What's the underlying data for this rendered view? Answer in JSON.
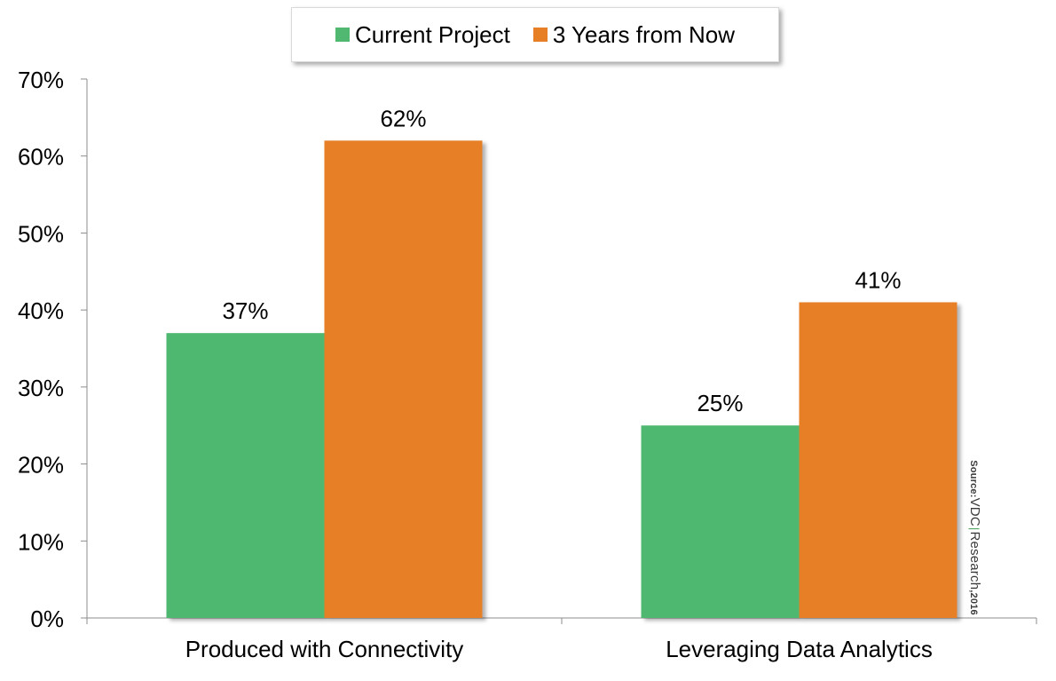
{
  "chart_data": {
    "type": "bar",
    "categories": [
      "Produced with Connectivity",
      "Leveraging Data Analytics"
    ],
    "series": [
      {
        "name": "Current Project",
        "values": [
          37,
          25
        ],
        "labels": [
          "37%",
          "25%"
        ],
        "color": "#50b870"
      },
      {
        "name": "3 Years from Now",
        "values": [
          62,
          41
        ],
        "labels": [
          "62%",
          "41%"
        ],
        "color": "#e67f26"
      }
    ],
    "ylim": [
      0,
      70
    ],
    "yticks": [
      0,
      10,
      20,
      30,
      40,
      50,
      60,
      70
    ],
    "ytick_labels": [
      "0%",
      "10%",
      "20%",
      "30%",
      "40%",
      "50%",
      "60%",
      "70%"
    ],
    "grid": false,
    "legend": "top-center",
    "title": "",
    "xlabel": "",
    "ylabel": ""
  },
  "source_stamp": {
    "prefix": "Source:",
    "brand_first": "VDC",
    "brand_second": "Research",
    "year_suffix": ",2016"
  }
}
